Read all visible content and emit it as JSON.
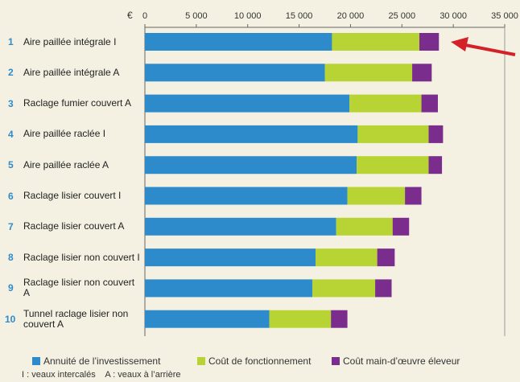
{
  "chart_data": {
    "type": "stacked-bar-horizontal",
    "unit_label": "€",
    "numbers": [
      "1",
      "2",
      "3",
      "4",
      "5",
      "6",
      "7",
      "8",
      "9",
      "10"
    ],
    "categories": [
      "Aire paillée intégrale I",
      "Aire paillée intégrale A",
      "Raclage fumier couvert A",
      "Aire paillée raclée I",
      "Aire paillée raclée A",
      "Raclage lisier couvert I",
      "Raclage lisier couvert A",
      "Raclage lisier non couvert I",
      "Raclage lisier non couvert A",
      "Tunnel raclage lisier non couvert A"
    ],
    "series": [
      {
        "name": "Annuité de l’investissement",
        "color": "#2e8bcb",
        "values": [
          18200,
          17500,
          19900,
          20700,
          20600,
          19700,
          18600,
          16600,
          16300,
          12100
        ]
      },
      {
        "name": "Coût de fonctionnement",
        "color": "#b7d334",
        "values": [
          8500,
          8500,
          7000,
          6900,
          7000,
          5600,
          5500,
          6000,
          6100,
          6000
        ]
      },
      {
        "name": "Coût main-d’œuvre éleveur",
        "color": "#7b2d8e",
        "values": [
          1900,
          1900,
          1600,
          1400,
          1300,
          1600,
          1600,
          1700,
          1600,
          1600
        ]
      }
    ],
    "xlim": [
      0,
      35000
    ],
    "xticks": [
      0,
      {
        "value": 5000,
        "label": "5 000"
      },
      {
        "value": 10000,
        "label": "10 000"
      },
      {
        "value": 15000,
        "label": "15 000"
      },
      {
        "value": 20000,
        "label": "20 000"
      },
      {
        "value": 25000,
        "label": "25 000"
      },
      {
        "value": 30000,
        "label": "30 000"
      },
      {
        "value": 35000,
        "label": "35 000"
      }
    ],
    "legend": "bottom",
    "footnote": "I : veaux intercalés    A : veaux à l’arrière"
  }
}
